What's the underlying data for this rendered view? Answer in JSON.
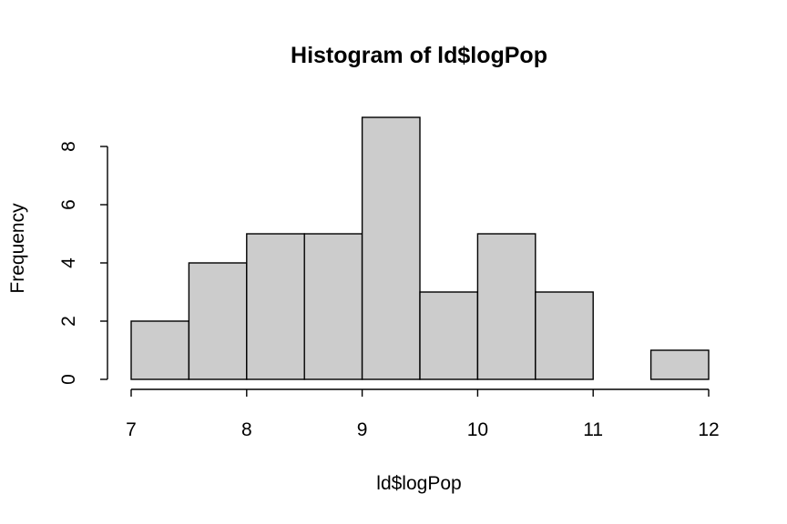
{
  "chart_data": {
    "type": "bar",
    "title": "Histogram of ld$logPop",
    "xlabel": "ld$logPop",
    "ylabel": "Frequency",
    "bins": [
      {
        "from": 7.0,
        "to": 7.5,
        "count": 2
      },
      {
        "from": 7.5,
        "to": 8.0,
        "count": 4
      },
      {
        "from": 8.0,
        "to": 8.5,
        "count": 5
      },
      {
        "from": 8.5,
        "to": 9.0,
        "count": 5
      },
      {
        "from": 9.0,
        "to": 9.5,
        "count": 9
      },
      {
        "from": 9.5,
        "to": 10.0,
        "count": 3
      },
      {
        "from": 10.0,
        "to": 10.5,
        "count": 5
      },
      {
        "from": 10.5,
        "to": 11.0,
        "count": 3
      },
      {
        "from": 11.0,
        "to": 11.5,
        "count": 0
      },
      {
        "from": 11.5,
        "to": 12.0,
        "count": 1
      }
    ],
    "xlim": [
      7,
      12
    ],
    "ylim": [
      0,
      9
    ],
    "x_ticks": [
      "7",
      "8",
      "9",
      "10",
      "11",
      "12"
    ],
    "y_ticks": [
      "0",
      "2",
      "4",
      "6",
      "8"
    ],
    "bar_color": "#cccccc",
    "grid": false
  }
}
